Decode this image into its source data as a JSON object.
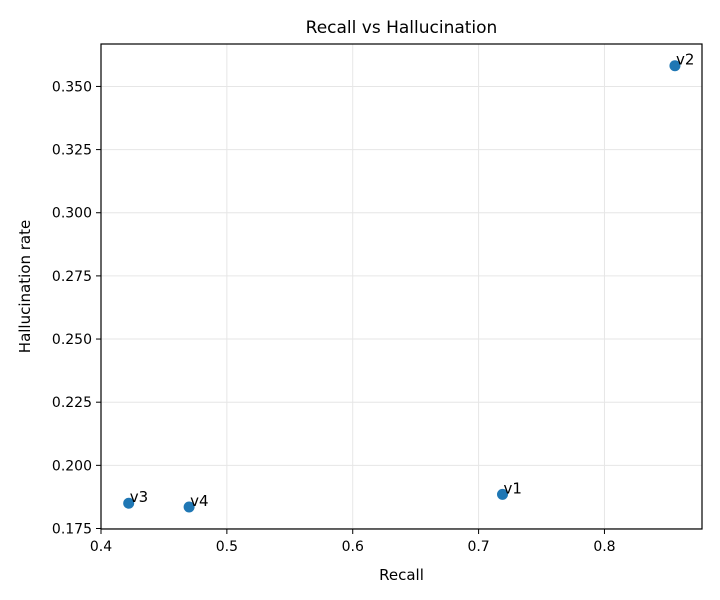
{
  "chart_data": {
    "type": "scatter",
    "title": "Recall vs Hallucination",
    "xlabel": "Recall",
    "ylabel": "Hallucination rate",
    "xlim": [
      0.4,
      0.8775
    ],
    "ylim": [
      0.1748,
      0.3668
    ],
    "xticks": [
      0.4,
      0.5,
      0.6,
      0.7,
      0.8
    ],
    "xtick_labels": [
      "0.4",
      "0.5",
      "0.6",
      "0.7",
      "0.8"
    ],
    "yticks": [
      0.175,
      0.2,
      0.225,
      0.25,
      0.275,
      0.3,
      0.325,
      0.35
    ],
    "ytick_labels": [
      "0.175",
      "0.200",
      "0.225",
      "0.250",
      "0.275",
      "0.300",
      "0.325",
      "0.350"
    ],
    "grid": true,
    "point_color": "#1f77b4",
    "points": [
      {
        "label": "v1",
        "x": 0.719,
        "y": 0.1885
      },
      {
        "label": "v2",
        "x": 0.856,
        "y": 0.3582
      },
      {
        "label": "v3",
        "x": 0.422,
        "y": 0.185
      },
      {
        "label": "v4",
        "x": 0.47,
        "y": 0.1835
      }
    ]
  }
}
